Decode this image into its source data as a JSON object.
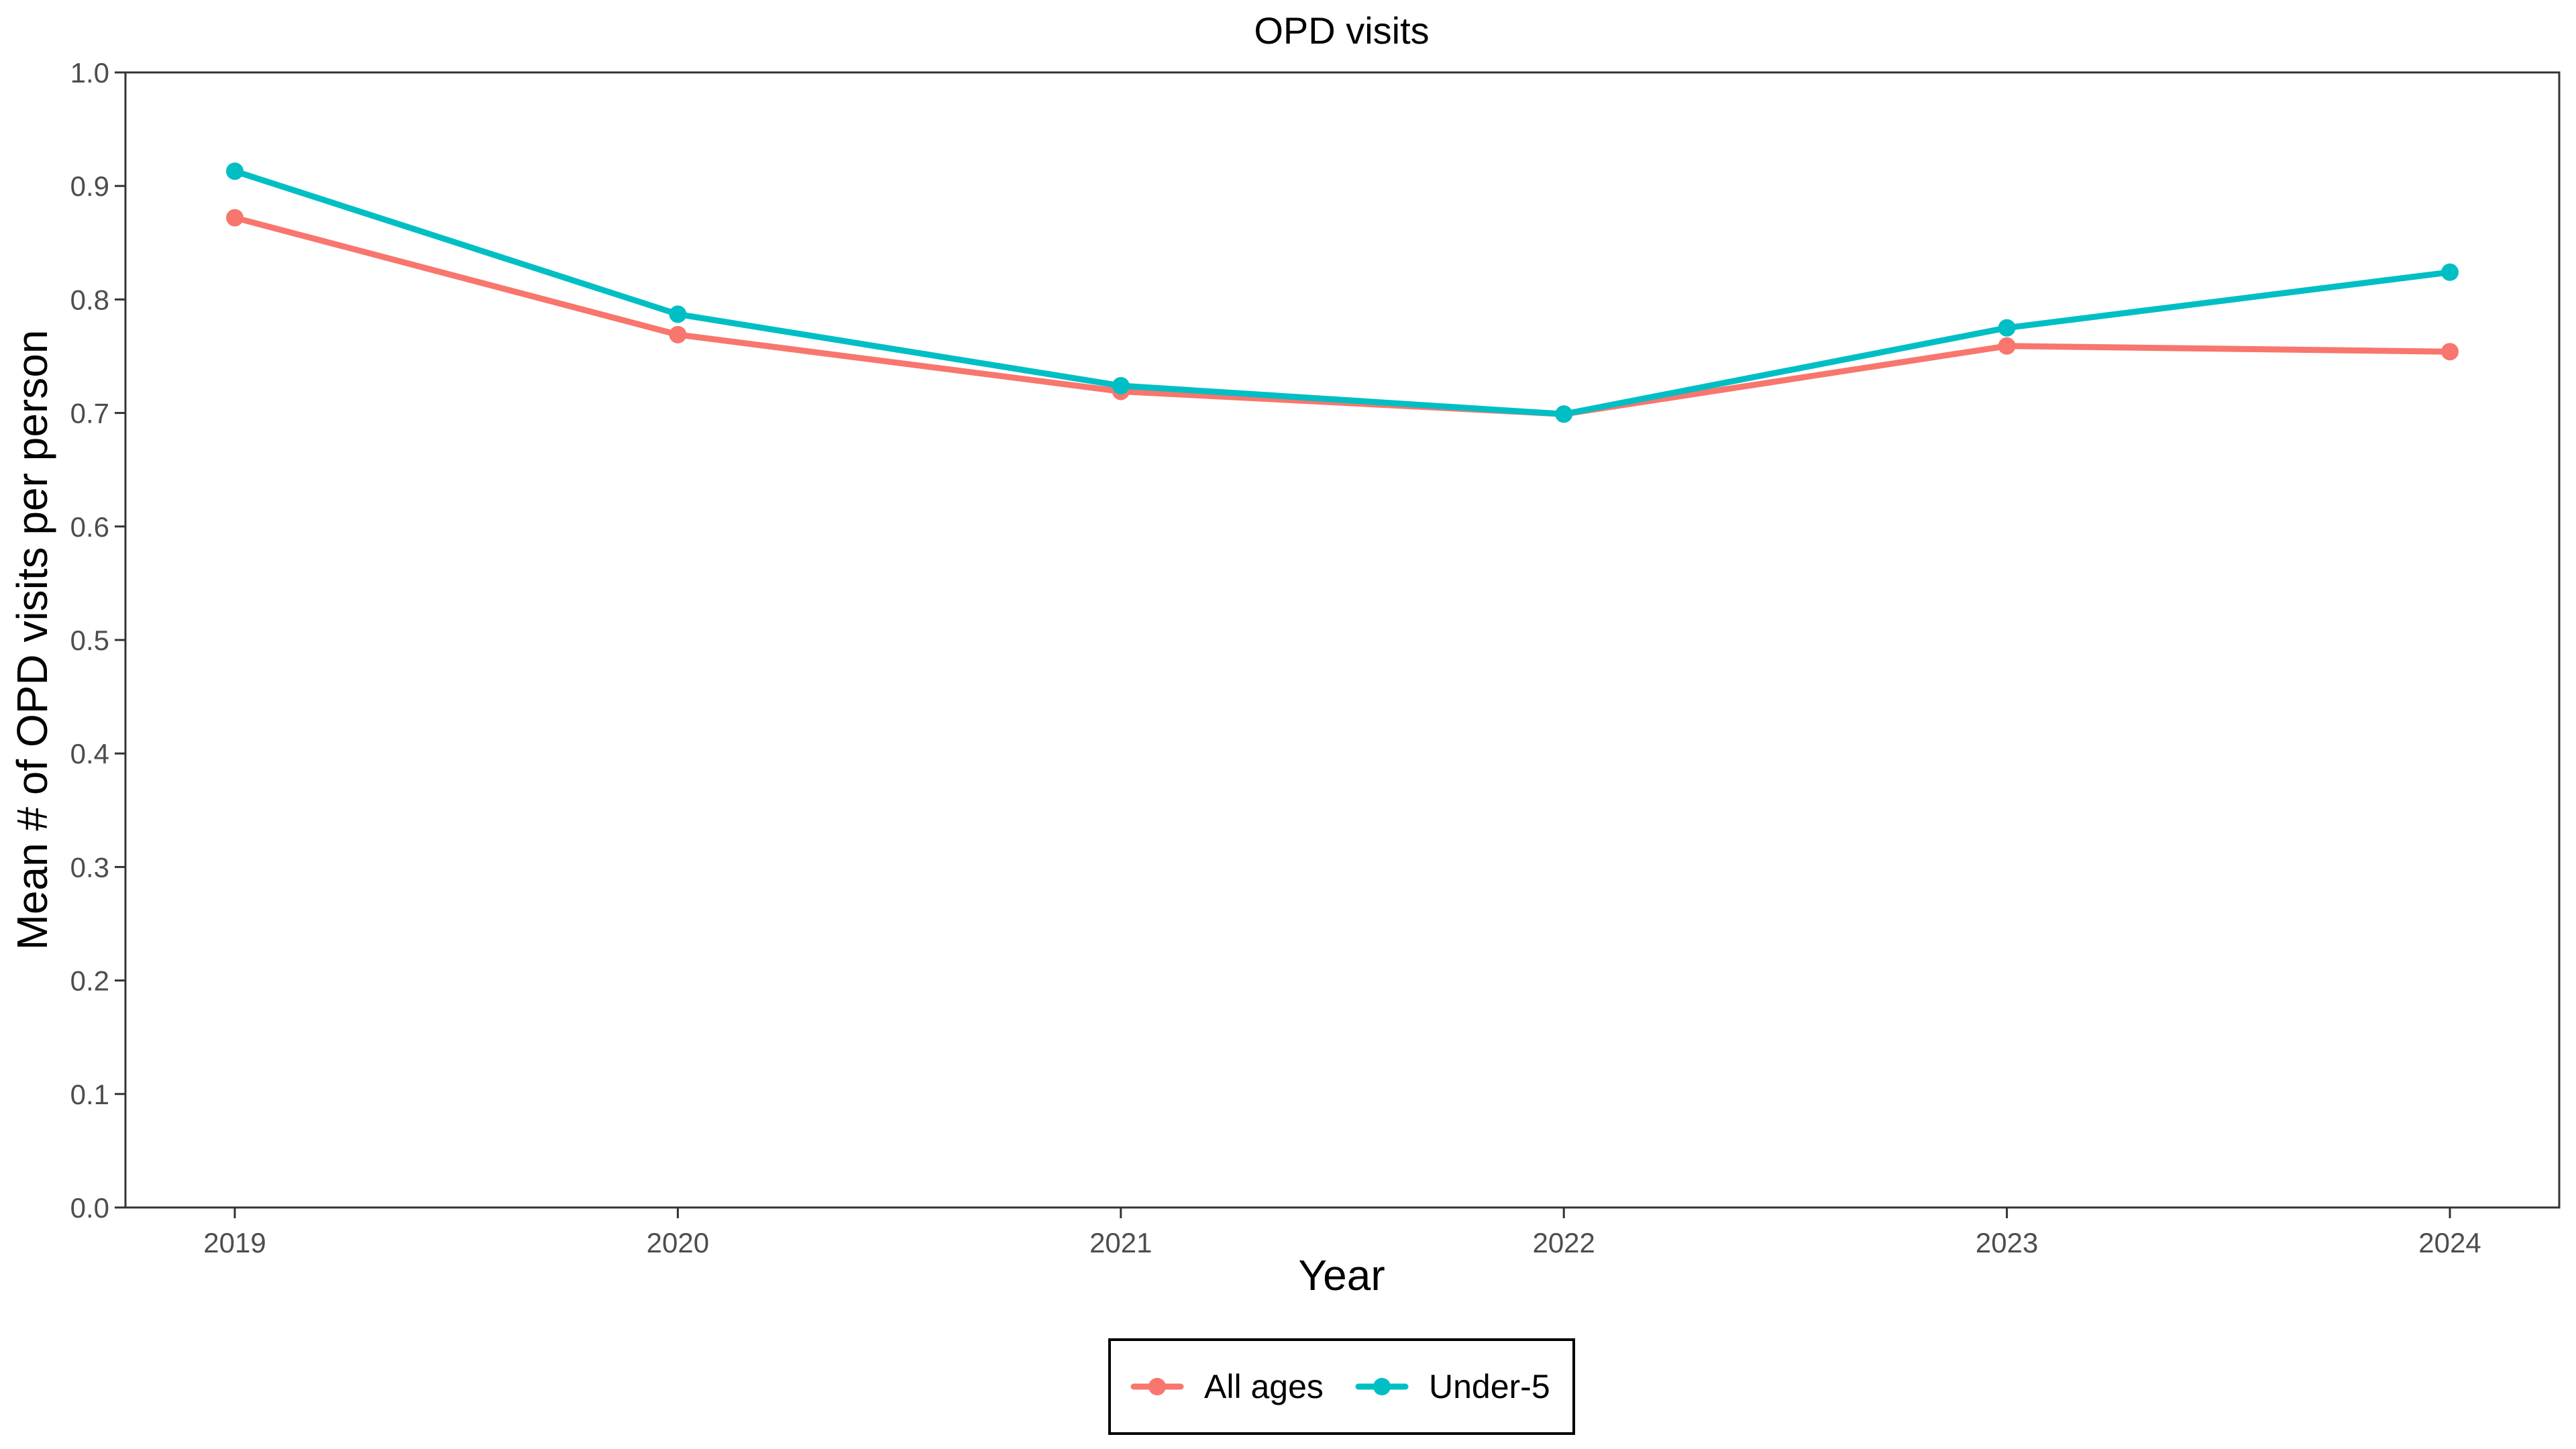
{
  "chart_data": {
    "type": "line",
    "title": "OPD visits",
    "xlabel": "Year",
    "ylabel": "Mean # of OPD visits per person",
    "x": [
      2019,
      2020,
      2021,
      2022,
      2023,
      2024
    ],
    "x_tick_labels": [
      "2019",
      "2020",
      "2021",
      "2022",
      "2023",
      "2024"
    ],
    "ylim": [
      0,
      1
    ],
    "y_ticks": [
      0.0,
      0.1,
      0.2,
      0.3,
      0.4,
      0.5,
      0.6,
      0.7,
      0.8,
      0.9,
      1.0
    ],
    "y_tick_labels": [
      "0.0",
      "0.1",
      "0.2",
      "0.3",
      "0.4",
      "0.5",
      "0.6",
      "0.7",
      "0.8",
      "0.9",
      "1.0"
    ],
    "grid": false,
    "legend_position": "bottom",
    "series": [
      {
        "name": "All ages",
        "color": "#F8766D",
        "values": [
          0.872,
          0.769,
          0.719,
          0.699,
          0.759,
          0.754
        ]
      },
      {
        "name": "Under-5",
        "color": "#00BFC4",
        "values": [
          0.913,
          0.787,
          0.724,
          0.699,
          0.775,
          0.824
        ]
      }
    ]
  }
}
